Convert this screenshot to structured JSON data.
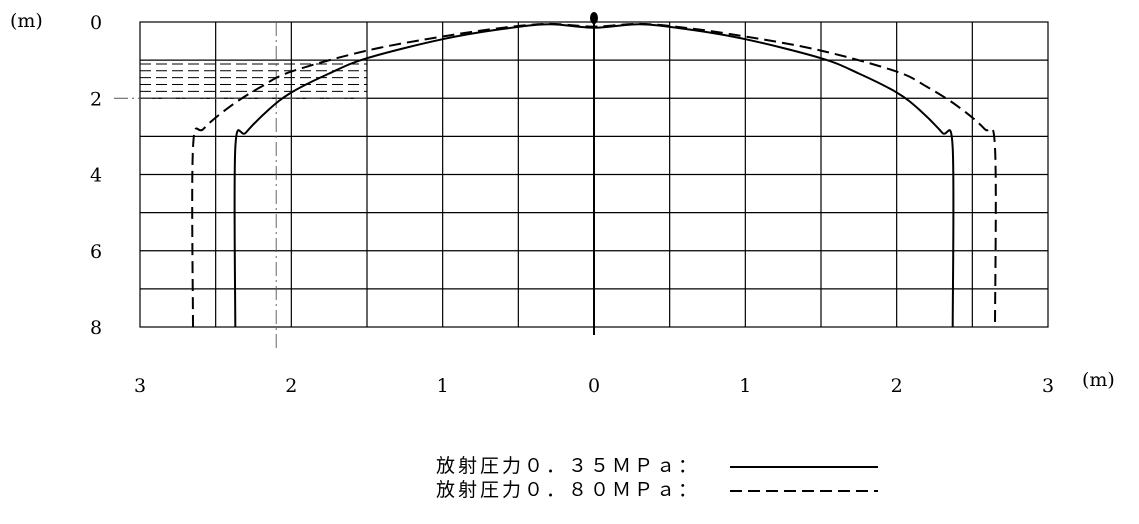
{
  "chart_data": {
    "type": "line",
    "x_unit": "(m)",
    "y_unit": "(m)",
    "x_ticks": [
      {
        "label": "3",
        "value": -3
      },
      {
        "label": "2",
        "value": -2
      },
      {
        "label": "1",
        "value": -1
      },
      {
        "label": "0",
        "value": 0
      },
      {
        "label": "1",
        "value": 1
      },
      {
        "label": "2",
        "value": 2
      },
      {
        "label": "3",
        "value": 3
      }
    ],
    "y_ticks": [
      {
        "label": "0",
        "value": 0
      },
      {
        "label": "2",
        "value": 2
      },
      {
        "label": "4",
        "value": 4
      },
      {
        "label": "6",
        "value": 6
      },
      {
        "label": "8",
        "value": 8
      }
    ],
    "xlim": [
      -3,
      3
    ],
    "ylim": [
      0,
      8
    ],
    "grid": true,
    "y_inverted": true,
    "series": [
      {
        "name": "放射圧力０．３５ＭＰａ：",
        "style": "solid",
        "points": [
          [
            -2.37,
            8.0
          ],
          [
            -2.37,
            3.3
          ],
          [
            -2.3,
            2.9
          ],
          [
            -2.15,
            2.3
          ],
          [
            -2.0,
            1.85
          ],
          [
            -1.75,
            1.35
          ],
          [
            -1.5,
            0.95
          ],
          [
            -1.0,
            0.45
          ],
          [
            -0.6,
            0.18
          ],
          [
            -0.3,
            0.06
          ],
          [
            0.0,
            0.15
          ],
          [
            0.3,
            0.06
          ],
          [
            0.6,
            0.18
          ],
          [
            1.0,
            0.45
          ],
          [
            1.5,
            0.95
          ],
          [
            1.75,
            1.35
          ],
          [
            2.0,
            1.85
          ],
          [
            2.15,
            2.3
          ],
          [
            2.3,
            2.9
          ],
          [
            2.37,
            3.3
          ],
          [
            2.37,
            8.0
          ]
        ]
      },
      {
        "name": "放射圧力０．８０ＭＰａ：",
        "style": "dashed",
        "points": [
          [
            -2.65,
            8.0
          ],
          [
            -2.65,
            3.3
          ],
          [
            -2.58,
            2.8
          ],
          [
            -2.4,
            2.2
          ],
          [
            -2.2,
            1.7
          ],
          [
            -2.0,
            1.3
          ],
          [
            -1.5,
            0.75
          ],
          [
            -1.0,
            0.38
          ],
          [
            -0.6,
            0.15
          ],
          [
            -0.3,
            0.05
          ],
          [
            0.0,
            0.12
          ],
          [
            0.3,
            0.05
          ],
          [
            0.6,
            0.15
          ],
          [
            1.0,
            0.38
          ],
          [
            1.5,
            0.75
          ],
          [
            2.0,
            1.3
          ],
          [
            2.2,
            1.7
          ],
          [
            2.4,
            2.2
          ],
          [
            2.58,
            2.8
          ],
          [
            2.65,
            3.3
          ],
          [
            2.65,
            8.0
          ]
        ]
      }
    ],
    "nozzle_mark": {
      "x": 0,
      "y": 0
    },
    "reference_lines": {
      "x": -2.1,
      "y": 2.0
    },
    "hatched_region": {
      "x": [
        -3.0,
        -1.5
      ],
      "y": [
        1.1,
        2.0
      ],
      "line_count": 6
    }
  }
}
